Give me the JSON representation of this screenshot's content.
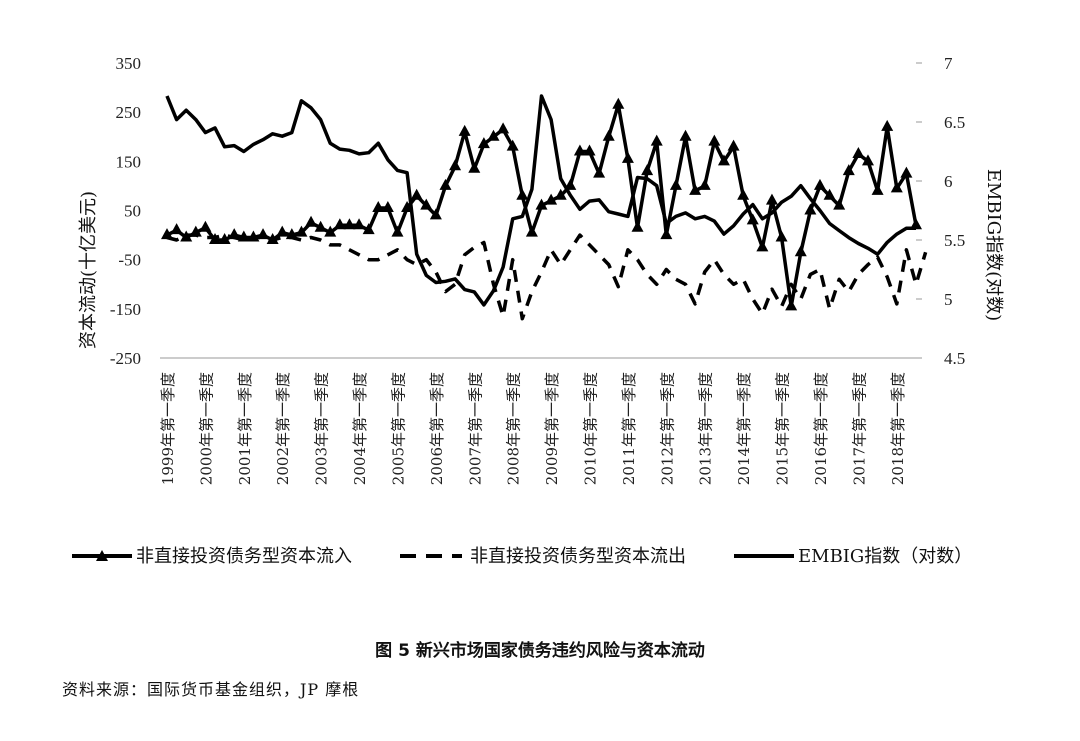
{
  "chart_data": {
    "type": "line",
    "title": "",
    "ylabel_left": "资本流动(十亿美元)",
    "ylabel_right": "EMBIG指数(对数)",
    "ylim_left": [
      -250,
      350
    ],
    "yticks_left": [
      "350",
      "250",
      "150",
      "50",
      "-50",
      "-150",
      "-250"
    ],
    "ylim_right": [
      4.5,
      7
    ],
    "yticks_right": [
      "7",
      "6.5",
      "6",
      "5.5",
      "5",
      "4.5"
    ],
    "x_tick_labels": [
      "1999年第一季度",
      "2000年第一季度",
      "2001年第一季度",
      "2002年第一季度",
      "2003年第一季度",
      "2004年第一季度",
      "2005年第一季度",
      "2006年第一季度",
      "2007年第一季度",
      "2008年第一季度",
      "2009年第一季度",
      "2010年第一季度",
      "2011年第一季度",
      "2012年第一季度",
      "2013年第一季度",
      "2014年第一季度",
      "2015年第一季度",
      "2016年第一季度",
      "2017年第一季度",
      "2018年第一季度"
    ],
    "legend_position": "bottom",
    "grid": false,
    "series": [
      {
        "name": "非直接投资债务型资本流入",
        "axis": "left",
        "style": "solid-triangle",
        "values": [
          0,
          10,
          -5,
          5,
          15,
          -10,
          -10,
          0,
          -5,
          -5,
          0,
          -10,
          5,
          0,
          5,
          25,
          15,
          5,
          20,
          20,
          20,
          10,
          55,
          55,
          5,
          55,
          80,
          60,
          40,
          100,
          140,
          210,
          135,
          185,
          200,
          215,
          180,
          80,
          5,
          60,
          70,
          80,
          100,
          170,
          170,
          125,
          200,
          265,
          155,
          15,
          130,
          190,
          0,
          100,
          200,
          90,
          100,
          190,
          150,
          180,
          80,
          30,
          -25,
          70,
          -5,
          -145,
          -35,
          50,
          100,
          80,
          60,
          130,
          165,
          150,
          90,
          220,
          95,
          125,
          20
        ]
      },
      {
        "name": "非直接投资债务型资本流出",
        "axis": "left",
        "style": "dashed",
        "values": [
          -5,
          -10,
          0,
          0,
          -5,
          -5,
          0,
          -5,
          -10,
          -5,
          -5,
          -10,
          -5,
          -5,
          -10,
          -5,
          -10,
          -20,
          -20,
          -30,
          -40,
          -50,
          -50,
          -40,
          -30,
          -50,
          -60,
          -50,
          -75,
          -115,
          -100,
          -40,
          -25,
          -15,
          -100,
          -165,
          -50,
          -170,
          -115,
          -75,
          -30,
          -60,
          -30,
          0,
          -20,
          -40,
          -60,
          -105,
          -30,
          -50,
          -80,
          -100,
          -70,
          -90,
          -100,
          -140,
          -75,
          -50,
          -80,
          -100,
          -90,
          -130,
          -160,
          -110,
          -145,
          -100,
          -130,
          -80,
          -70,
          -150,
          -90,
          -115,
          -80,
          -60,
          -45,
          -85,
          -140,
          -30,
          -100,
          -35
        ]
      },
      {
        "name": "EMBIG指数（对数）",
        "axis": "right",
        "style": "solid",
        "values": [
          6.72,
          6.52,
          6.6,
          6.52,
          6.41,
          6.45,
          6.29,
          6.3,
          6.25,
          6.31,
          6.35,
          6.4,
          6.38,
          6.41,
          6.68,
          6.62,
          6.52,
          6.32,
          6.27,
          6.26,
          6.23,
          6.24,
          6.32,
          6.18,
          6.09,
          6.07,
          5.38,
          5.2,
          5.14,
          5.15,
          5.17,
          5.08,
          5.06,
          4.95,
          5.07,
          5.27,
          5.68,
          5.7,
          5.93,
          6.72,
          6.52,
          6.02,
          5.88,
          5.76,
          5.83,
          5.84,
          5.74,
          5.72,
          5.7,
          6.03,
          6.02,
          5.96,
          5.64,
          5.7,
          5.73,
          5.68,
          5.7,
          5.66,
          5.55,
          5.62,
          5.72,
          5.8,
          5.68,
          5.73,
          5.82,
          5.87,
          5.96,
          5.85,
          5.75,
          5.64,
          5.58,
          5.52,
          5.47,
          5.43,
          5.38,
          5.48,
          5.55,
          5.6,
          5.6
        ]
      }
    ]
  },
  "caption": "图 5   新兴市场国家债务违约风险与资本流动",
  "source": "资料来源：国际货币基金组织，JP 摩根"
}
